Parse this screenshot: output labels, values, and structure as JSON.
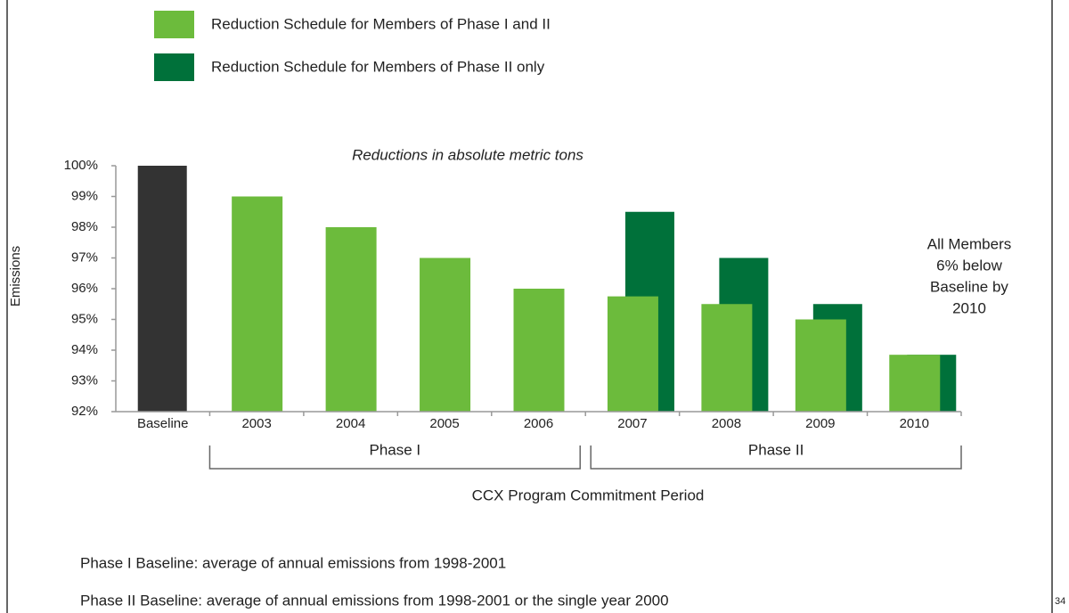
{
  "chart_data": {
    "type": "bar",
    "subtitle": "Reductions in absolute metric tons",
    "y_label": "Emissions",
    "categories": [
      "Baseline",
      "2003",
      "2004",
      "2005",
      "2006",
      "2007",
      "2008",
      "2009",
      "2010"
    ],
    "baseline": {
      "value": 100,
      "color": "#333333"
    },
    "series": [
      {
        "name": "Reduction Schedule for Members of Phase I and II",
        "color": "#6cbb3c",
        "values": [
          null,
          99,
          98,
          97,
          96,
          95.75,
          95.5,
          95,
          93.85
        ]
      },
      {
        "name": "Reduction Schedule for Members of Phase II only",
        "color": "#00713a",
        "values": [
          null,
          null,
          null,
          null,
          null,
          98.5,
          97,
          95.5,
          93.85
        ]
      }
    ],
    "ylim": [
      92,
      100
    ],
    "yticks": [
      {
        "value": 92,
        "label": "92%"
      },
      {
        "value": 93,
        "label": "93%"
      },
      {
        "value": 94,
        "label": "94%"
      },
      {
        "value": 95,
        "label": "95%"
      },
      {
        "value": 96,
        "label": "96%"
      },
      {
        "value": 97,
        "label": "97%"
      },
      {
        "value": 98,
        "label": "98%"
      },
      {
        "value": 99,
        "label": "99%"
      },
      {
        "value": 100,
        "label": "100%"
      }
    ],
    "annotation": [
      "All Members",
      "6% below",
      "Baseline by",
      "2010"
    ],
    "phases": [
      {
        "label": "Phase I",
        "from": 1,
        "to": 4
      },
      {
        "label": "Phase II",
        "from": 5,
        "to": 8
      }
    ],
    "period_label": "CCX Program Commitment Period",
    "footnotes": [
      "Phase I Baseline: average of annual emissions from 1998-2001",
      "Phase II Baseline: average of annual emissions from 1998-2001 or the single year 2000"
    ],
    "page_number": "34"
  }
}
